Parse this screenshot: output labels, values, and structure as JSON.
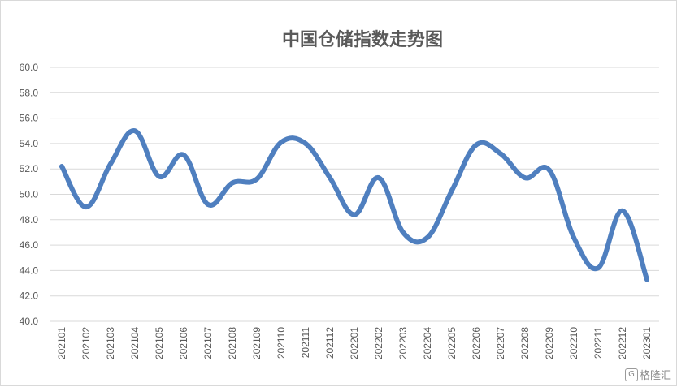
{
  "chart_data": {
    "type": "line",
    "title": "中国仓储指数走势图",
    "xlabel": "",
    "ylabel": "",
    "ylim": [
      40,
      60
    ],
    "y_ticks": [
      "60.0",
      "58.0",
      "56.0",
      "54.0",
      "52.0",
      "50.0",
      "48.0",
      "46.0",
      "44.0",
      "42.0",
      "40.0"
    ],
    "categories": [
      "202101",
      "202102",
      "202103",
      "202104",
      "202105",
      "202106",
      "202107",
      "202108",
      "202109",
      "202110",
      "202111",
      "202112",
      "202201",
      "202202",
      "202203",
      "202204",
      "202205",
      "202206",
      "202207",
      "202208",
      "202209",
      "202210",
      "202211",
      "202212",
      "202301"
    ],
    "series": [
      {
        "values": [
          52.2,
          49.0,
          52.4,
          55.0,
          51.4,
          53.1,
          49.2,
          50.9,
          51.2,
          54.1,
          54.0,
          51.3,
          48.4,
          51.3,
          47.0,
          46.6,
          50.3,
          53.9,
          53.2,
          51.3,
          51.9,
          46.6,
          44.2,
          48.7,
          43.3
        ],
        "color": "#4f7fbf"
      }
    ],
    "grid": true,
    "legend": "none"
  },
  "watermark": {
    "icon": "gelonghui-logo-icon",
    "text": "格隆汇",
    "icon_glyph": "G"
  }
}
